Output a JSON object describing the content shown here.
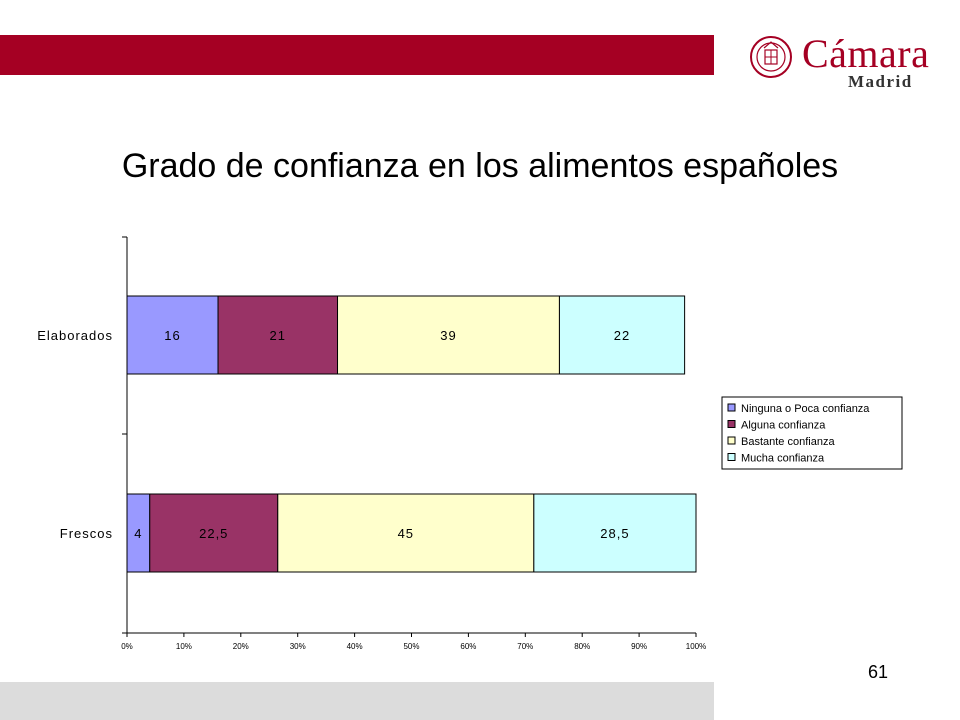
{
  "header": {
    "brand_color": "#a50023"
  },
  "logo": {
    "name": "Cámara",
    "city": "Madrid"
  },
  "slide": {
    "title": "Grado de confianza en los alimentos españoles",
    "page_number": "61"
  },
  "chart_data": {
    "type": "bar",
    "orientation": "horizontal",
    "stacked": "percent",
    "categories": [
      "Elaborados",
      "Frescos"
    ],
    "series": [
      {
        "name": "Ninguna o Poca confianza",
        "color": "#9999ff",
        "values": [
          16,
          4
        ],
        "labels": [
          "16",
          "4"
        ]
      },
      {
        "name": "Alguna confianza",
        "color": "#993366",
        "values": [
          21,
          22.5
        ],
        "labels": [
          "21",
          "22,5"
        ]
      },
      {
        "name": "Bastante confianza",
        "color": "#ffffcc",
        "values": [
          39,
          45
        ],
        "labels": [
          "39",
          "45"
        ]
      },
      {
        "name": "Mucha confianza",
        "color": "#ccffff",
        "values": [
          22,
          28.5
        ],
        "labels": [
          "22",
          "28,5"
        ]
      }
    ],
    "xlim": [
      0,
      100
    ],
    "xticks": [
      "0%",
      "10%",
      "20%",
      "30%",
      "40%",
      "50%",
      "60%",
      "70%",
      "80%",
      "90%",
      "100%"
    ],
    "legend": "right",
    "grid": false
  }
}
